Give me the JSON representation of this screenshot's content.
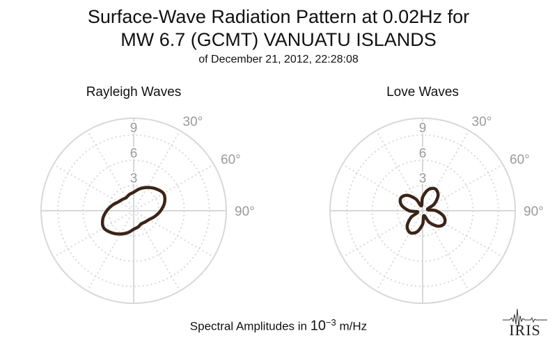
{
  "title_line1": "Surface-Wave Radiation Pattern at 0.02Hz for",
  "title_line2": "MW 6.7 (GCMT) VANUATU ISLANDS",
  "subtitle": "of December 21, 2012, 22:28:08",
  "footer": {
    "prefix": "Spectral Amplitudes in ",
    "base": "10",
    "exponent": "−3",
    "unit": " m/Hz"
  },
  "logo_text": "IRIS",
  "colors": {
    "curve": "#3b2418",
    "grid": "#d8d8d8",
    "label": "#9a9a9a"
  },
  "chart_data": [
    {
      "type": "polar",
      "title": "Rayleigh Waves",
      "r_ticks": [
        "3",
        "6",
        "9"
      ],
      "r_max": 11,
      "theta_labels": [
        "30°",
        "60°",
        "90°"
      ],
      "theta_direction": "clockwise from north",
      "series": [
        {
          "theta_deg": [
            0,
            15,
            30,
            45,
            60,
            75,
            90,
            105,
            120,
            135,
            150,
            165,
            180,
            195,
            210,
            225,
            240,
            255,
            270,
            285,
            300,
            315,
            330,
            345
          ],
          "r": [
            2.2,
            2.7,
            3.2,
            3.7,
            4.1,
            3.8,
            3.2,
            2.6,
            2.1,
            1.9,
            1.8,
            2.0,
            2.2,
            2.7,
            3.2,
            3.7,
            4.1,
            3.8,
            3.2,
            2.6,
            2.1,
            1.9,
            1.8,
            2.0
          ]
        }
      ]
    },
    {
      "type": "polar",
      "title": "Love Waves",
      "r_ticks": [
        "3",
        "6",
        "9"
      ],
      "r_max": 11,
      "theta_labels": [
        "30°",
        "60°",
        "90°"
      ],
      "theta_direction": "clockwise from north",
      "series": [
        {
          "theta_deg": [
            0,
            15,
            30,
            45,
            60,
            75,
            90,
            105,
            120,
            135,
            150,
            165,
            180,
            195,
            210,
            225,
            240,
            255,
            270,
            285,
            300,
            315,
            330,
            345
          ],
          "r": [
            1.6,
            2.6,
            3.0,
            2.6,
            1.6,
            0.6,
            1.6,
            2.6,
            3.0,
            2.6,
            1.6,
            0.6,
            1.6,
            2.6,
            3.0,
            2.6,
            1.6,
            0.6,
            1.6,
            2.6,
            3.0,
            2.6,
            1.6,
            0.6
          ]
        }
      ]
    }
  ]
}
